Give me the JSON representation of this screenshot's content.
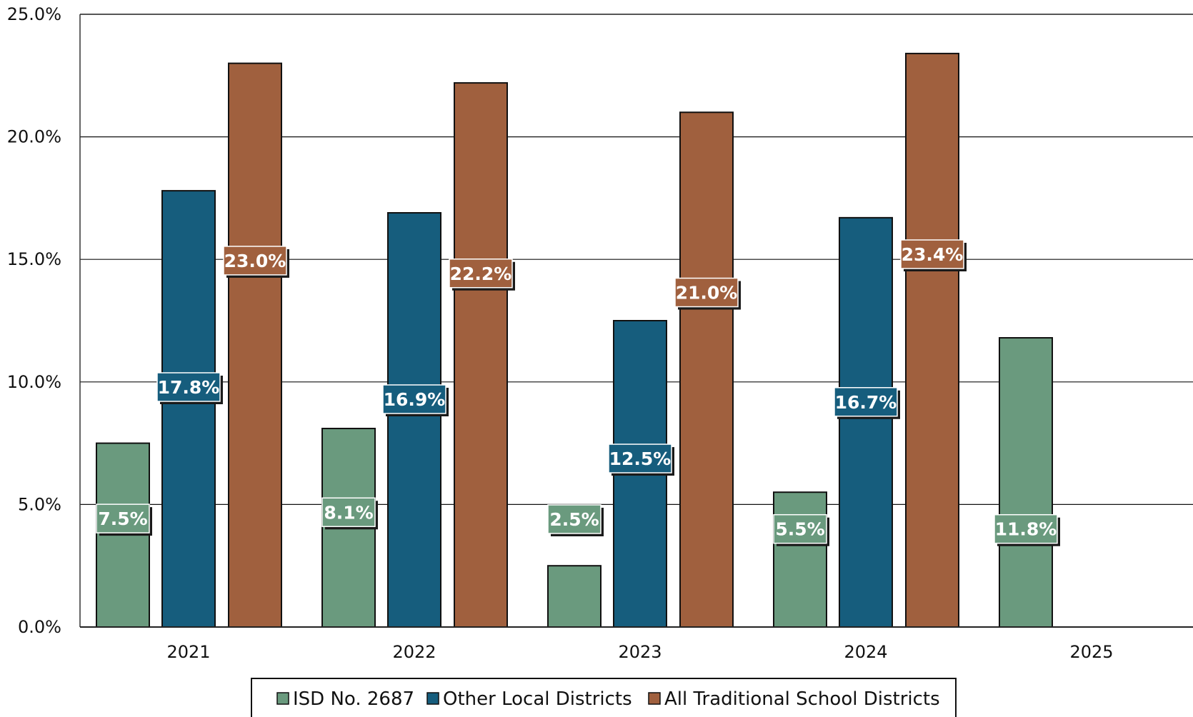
{
  "chart_data": {
    "type": "bar",
    "title": "",
    "xlabel": "",
    "ylabel": "",
    "categories": [
      "2021",
      "2022",
      "2023",
      "2024",
      "2025"
    ],
    "y_ticks": [
      "0.0%",
      "5.0%",
      "10.0%",
      "15.0%",
      "20.0%",
      "25.0%"
    ],
    "ylim": [
      0,
      25
    ],
    "grid": true,
    "legend_position": "bottom",
    "series": [
      {
        "name": "ISD No. 2687",
        "color": "#6a9a7e",
        "values": [
          7.5,
          8.1,
          2.5,
          5.5,
          11.8
        ],
        "labels": [
          "7.5%",
          "8.1%",
          "2.5%",
          "5.5%",
          "11.8%"
        ]
      },
      {
        "name": "Other Local Districts",
        "color": "#165d7d",
        "values": [
          17.8,
          16.9,
          12.5,
          16.7,
          null
        ],
        "labels": [
          "17.8%",
          "16.9%",
          "12.5%",
          "16.7%",
          null
        ]
      },
      {
        "name": "All Traditional School Districts",
        "color": "#a0603e",
        "values": [
          23.0,
          22.2,
          21.0,
          23.4,
          null
        ],
        "labels": [
          "23.0%",
          "22.2%",
          "21.0%",
          "23.4%",
          null
        ]
      }
    ]
  }
}
